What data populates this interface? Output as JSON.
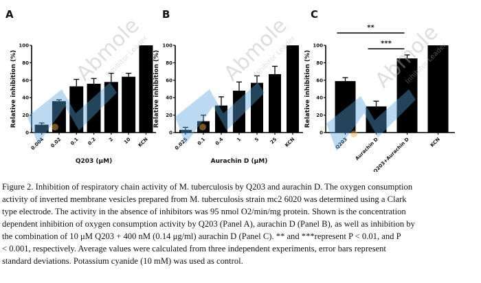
{
  "watermark": {
    "brand": "Abmole",
    "tagline": "Inhibitor Leader"
  },
  "chart_data": [
    {
      "type": "bar",
      "panel": "A",
      "title": "",
      "xlabel": "Q203 (μM)",
      "ylabel": "Relative inhibition (%)",
      "ylim": [
        0,
        100
      ],
      "yticks": [
        0,
        20,
        40,
        60,
        80,
        100
      ],
      "categories": [
        "0.004",
        "0.02",
        "0.1",
        "0.2",
        "2",
        "10",
        "KCN"
      ],
      "values": [
        9,
        36,
        53,
        56,
        58,
        64,
        100
      ],
      "errors": [
        2,
        1.5,
        8,
        6,
        10,
        4,
        0
      ],
      "bar_color": "#000000",
      "grid": false
    },
    {
      "type": "bar",
      "panel": "B",
      "title": "",
      "xlabel": "Aurachin D (μM)",
      "ylabel": "Relative inhibition (%)",
      "ylim": [
        0,
        100
      ],
      "yticks": [
        0,
        20,
        40,
        60,
        80,
        100
      ],
      "categories": [
        "0.025",
        "0.1",
        "0.4",
        "1",
        "5",
        "25",
        "KCN"
      ],
      "values": [
        3,
        13,
        31,
        48,
        57,
        67,
        100
      ],
      "errors": [
        3,
        7,
        10,
        10,
        8,
        9,
        0
      ],
      "bar_color": "#000000",
      "grid": false
    },
    {
      "type": "bar",
      "panel": "C",
      "title": "",
      "xlabel": "",
      "ylabel": "Relative inhibition (%)",
      "ylim": [
        0,
        100
      ],
      "yticks": [
        0,
        20,
        40,
        60,
        80,
        100
      ],
      "categories": [
        "Q203",
        "Aurachin D",
        "Q203+Aurachin D",
        "KCN"
      ],
      "values": [
        59,
        30,
        85,
        100
      ],
      "errors": [
        4,
        6,
        4,
        0
      ],
      "bar_color": "#000000",
      "grid": false,
      "significance": [
        {
          "from": "Q203",
          "to": "Q203+Aurachin D",
          "label": "**"
        },
        {
          "from": "Aurachin D",
          "to": "Q203+Aurachin D",
          "label": "***"
        }
      ]
    }
  ],
  "caption": {
    "lines": [
      "Figure 2. Inhibition of respiratory chain activity of M. tuberculosis by Q203 and aurachin D. The oxygen consumption",
      "activity of inverted membrane vesicles prepared from M. tuberculosis strain mc2 6020 was determined using a Clark",
      "type electrode. The activity in the absence of inhibitors was 95 nmol O2/min/mg protein. Shown is the concentration",
      "dependent inhibition of oxygen consumption activity by Q203 (Panel A), aurachin D (Panel B), as well as inhibition by",
      "the combination of 10 μM Q203 + 400 nM (0.14 μg/ml) aurachin D (Panel C). ** and ***represent P < 0.01, and P",
      "< 0.001, respectively. Average values were calculated from three independent experiments, error bars represent",
      "standard deviations. Potassium cyanide (10 mM) was used as control."
    ]
  },
  "colors": {
    "watermark_blue": "#5aa5e0",
    "watermark_gray": "#b5b5b5",
    "watermark_dot": "#e8b04a"
  }
}
